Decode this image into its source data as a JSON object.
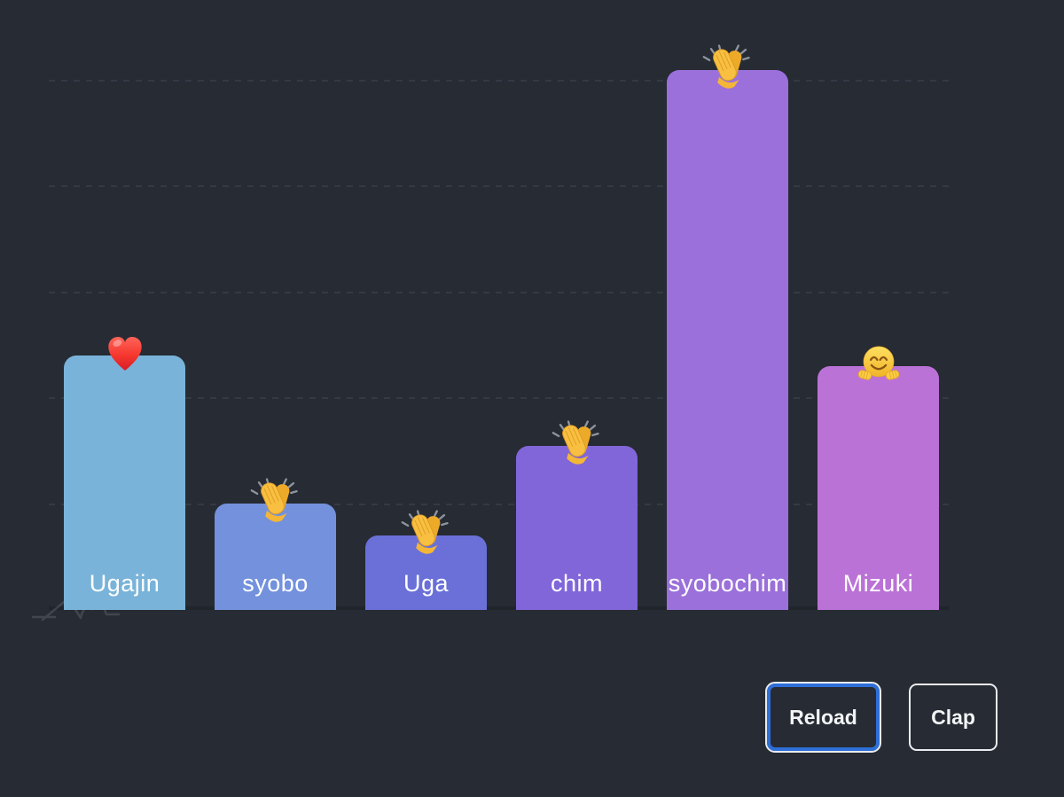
{
  "app": {
    "background_color": "#272b33",
    "gridline_color": "#343944",
    "baseline_color": "#20242b",
    "label_color": "#ffffff"
  },
  "chart_data": {
    "type": "bar",
    "title": "",
    "xlabel": "",
    "ylabel": "",
    "categories": [
      "Ugajin",
      "syobo",
      "Uga",
      "chim",
      "syobochim",
      "Mizuki"
    ],
    "values": [
      2.4,
      1.0,
      0.7,
      1.55,
      5.1,
      2.3
    ],
    "value_note": "no numeric axis labels visible; values estimated in gridline units (1 unit = 1 dashed gridline spacing)",
    "ylim": [
      0,
      5.75
    ],
    "grid": {
      "on": true,
      "style": "dashed",
      "horizontal_lines_units": [
        1,
        2,
        3,
        4,
        5
      ]
    },
    "legend": "none",
    "bars": [
      {
        "label": "Ugajin",
        "value": 2.4,
        "color": "#79b3d9",
        "emoji": "red-heart"
      },
      {
        "label": "syobo",
        "value": 1.0,
        "color": "#7391dc",
        "emoji": "clap"
      },
      {
        "label": "Uga",
        "value": 0.7,
        "color": "#6a70d8",
        "emoji": "clap"
      },
      {
        "label": "chim",
        "value": 1.55,
        "color": "#8166da",
        "emoji": "clap"
      },
      {
        "label": "syobochim",
        "value": 5.1,
        "color": "#9b70da",
        "emoji": "clap"
      },
      {
        "label": "Mizuki",
        "value": 2.3,
        "color": "#bb72d7",
        "emoji": "hugging-face"
      }
    ]
  },
  "icons": {
    "emoji_glyphs": {
      "red-heart": "❤️",
      "clap": "👏",
      "hugging-face": "🤗"
    },
    "watermark": "mountain-scribble"
  },
  "buttons": {
    "reload_label": "Reload",
    "clap_label": "Clap",
    "reload_focus_ring_color": "#2e6fd8"
  }
}
